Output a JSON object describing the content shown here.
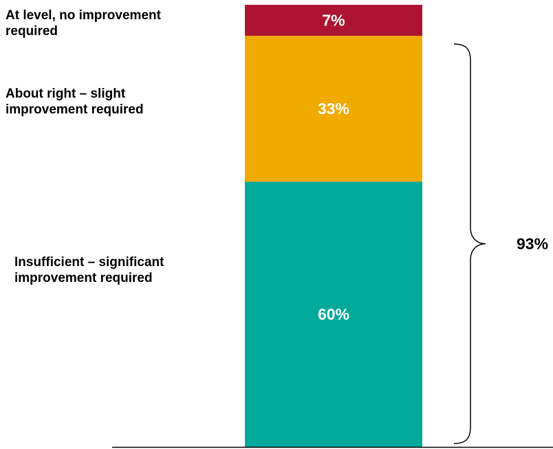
{
  "chart_data": {
    "type": "bar",
    "stacked": true,
    "unit": "%",
    "series": [
      {
        "name": "Insufficient – significant improvement required",
        "value": 60,
        "label": "60%",
        "color": "#00A99A",
        "category_lines": [
          "Insufficient – significant",
          "improvement required"
        ]
      },
      {
        "name": "About right – slight improvement required",
        "value": 33,
        "label": "33%",
        "color": "#F0AA00",
        "category_lines": [
          "About right – slight",
          "improvement required"
        ]
      },
      {
        "name": "At level, no improvement required",
        "value": 7,
        "label": "7%",
        "color": "#AD1433",
        "category_lines": [
          "At level, no improvement",
          "required"
        ]
      }
    ],
    "bracket": {
      "label": "93%",
      "spans": [
        "Insufficient – significant improvement required",
        "About right – slight improvement required"
      ]
    },
    "ylim": [
      0,
      100
    ],
    "grid": false,
    "legend": "none"
  }
}
